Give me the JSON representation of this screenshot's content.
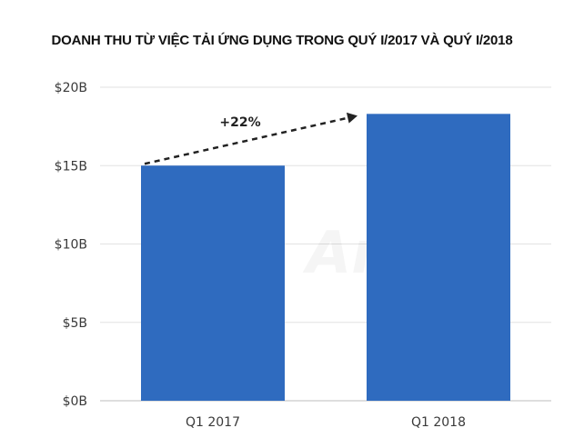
{
  "chart_data": {
    "type": "bar",
    "title": "DOANH THU TỪ VIỆC TẢI ỨNG DỤNG TRONG QUÝ I/2017 VÀ QUÝ I/2018",
    "categories": [
      "Q1 2017",
      "Q1 2018"
    ],
    "values": [
      15.0,
      18.3
    ],
    "unit": "B",
    "ylim": [
      0,
      20
    ],
    "yticks": [
      0,
      5,
      10,
      15,
      20
    ],
    "ytick_labels": [
      "$0B",
      "$5B",
      "$10B",
      "$15B",
      "$20B"
    ],
    "grid": true,
    "bar_color": "#2f6bbf",
    "annotation": {
      "text": "+22%",
      "from": "Q1 2017",
      "to": "Q1 2018"
    },
    "watermark": "App Annie"
  }
}
